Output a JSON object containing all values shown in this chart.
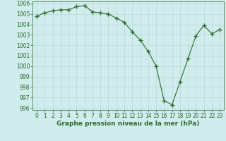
{
  "x": [
    0,
    1,
    2,
    3,
    4,
    5,
    6,
    7,
    8,
    9,
    10,
    11,
    12,
    13,
    14,
    15,
    16,
    17,
    18,
    19,
    20,
    21,
    22,
    23
  ],
  "y": [
    1004.8,
    1005.1,
    1005.3,
    1005.4,
    1005.4,
    1005.7,
    1005.8,
    1005.2,
    1005.1,
    1005.0,
    1004.6,
    1004.2,
    1003.3,
    1002.5,
    1001.4,
    1000.0,
    996.7,
    996.3,
    998.5,
    1000.7,
    1002.9,
    1003.9,
    1003.1,
    1003.5
  ],
  "line_color": "#2d6a2d",
  "marker": "+",
  "bg_color": "#d0ecec",
  "grid_color": "#b8d8d8",
  "xlabel": "Graphe pression niveau de la mer (hPa)",
  "ylim": [
    995.8,
    1006.2
  ],
  "xlim": [
    -0.5,
    23.5
  ],
  "yticks": [
    996,
    997,
    998,
    999,
    1000,
    1001,
    1002,
    1003,
    1004,
    1005,
    1006
  ],
  "xticks": [
    0,
    1,
    2,
    3,
    4,
    5,
    6,
    7,
    8,
    9,
    10,
    11,
    12,
    13,
    14,
    15,
    16,
    17,
    18,
    19,
    20,
    21,
    22,
    23
  ],
  "tick_color": "#2d6a2d",
  "label_fontsize": 6.5,
  "tick_fontsize": 5.5
}
